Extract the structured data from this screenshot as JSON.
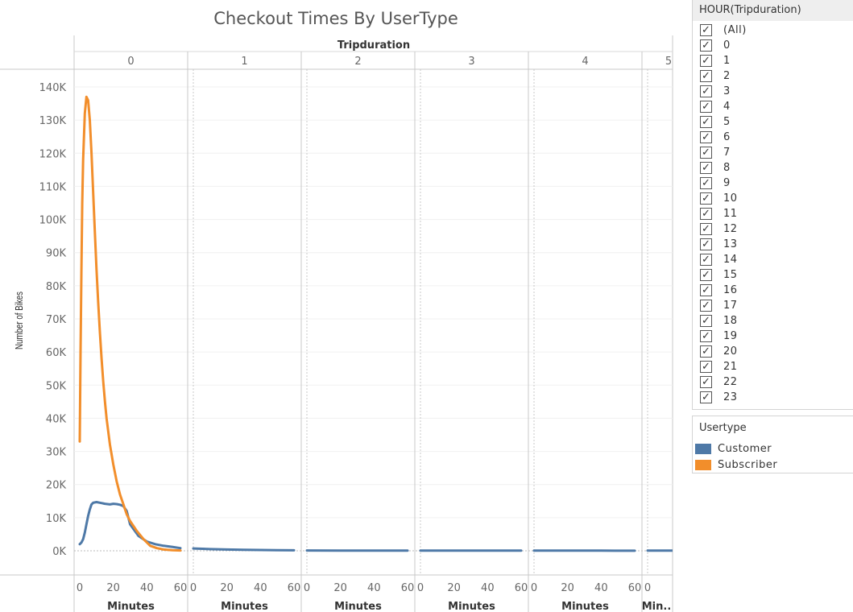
{
  "chart_data": {
    "type": "line",
    "title": "Checkout Times By UserType",
    "column_header": "Tripduration",
    "panes": [
      "0",
      "1",
      "2",
      "3",
      "4",
      "5"
    ],
    "ylabel": "Number of Bikes",
    "xlabel": "Minutes",
    "xlabel_truncated": "Min..",
    "ylim": [
      0,
      145000
    ],
    "yticks": [
      0,
      10000,
      20000,
      30000,
      40000,
      50000,
      60000,
      70000,
      80000,
      90000,
      100000,
      110000,
      120000,
      130000,
      140000
    ],
    "ytick_labels": [
      "0K",
      "10K",
      "20K",
      "30K",
      "40K",
      "50K",
      "60K",
      "70K",
      "80K",
      "90K",
      "100K",
      "110K",
      "120K",
      "130K",
      "140K"
    ],
    "xlim": [
      0,
      60
    ],
    "xticks": [
      0,
      20,
      40,
      60
    ],
    "xtick_labels": [
      "0",
      "20",
      "40",
      "60"
    ],
    "series": [
      {
        "name": "Customer",
        "color": "#4e79a7",
        "data": [
          {
            "pane": "0",
            "x": [
              0,
              1,
              2,
              3,
              4,
              5,
              6,
              7,
              8,
              10,
              12,
              15,
              18,
              20,
              22,
              24,
              26,
              28,
              30,
              35,
              40,
              45,
              50,
              55,
              60
            ],
            "y": [
              2000,
              2500,
              3500,
              5500,
              8000,
              10500,
              12500,
              14000,
              14500,
              14700,
              14500,
              14200,
              14000,
              14200,
              14100,
              13900,
              13500,
              12000,
              8000,
              4500,
              2800,
              2000,
              1500,
              1200,
              800
            ]
          },
          {
            "pane": "1",
            "x": [
              0,
              10,
              20,
              30,
              40,
              50,
              60
            ],
            "y": [
              700,
              500,
              400,
              300,
              250,
              200,
              150
            ]
          },
          {
            "pane": "2",
            "x": [
              0,
              20,
              40,
              60
            ],
            "y": [
              100,
              80,
              60,
              50
            ]
          },
          {
            "pane": "3",
            "x": [
              0,
              20,
              40,
              60
            ],
            "y": [
              80,
              60,
              50,
              40
            ]
          },
          {
            "pane": "4",
            "x": [
              0,
              20,
              40,
              60
            ],
            "y": [
              60,
              50,
              40,
              30
            ]
          },
          {
            "pane": "5",
            "x": [
              0,
              20
            ],
            "y": [
              50,
              40
            ]
          }
        ]
      },
      {
        "name": "Subscriber",
        "color": "#f28e2b",
        "data": [
          {
            "pane": "0",
            "x": [
              0,
              0.5,
              1,
              1.5,
              2,
              3,
              4,
              5,
              6,
              7,
              8,
              9,
              10,
              11,
              12,
              13,
              14,
              15,
              16,
              17,
              18,
              20,
              22,
              24,
              26,
              28,
              30,
              34,
              38,
              42,
              46,
              50,
              55,
              60
            ],
            "y": [
              33000,
              60000,
              85000,
              105000,
              118000,
              132000,
              137000,
              136000,
              130000,
              120000,
              108000,
              96000,
              85000,
              75000,
              66000,
              58000,
              51000,
              45000,
              40000,
              36000,
              32000,
              26000,
              21000,
              17000,
              14000,
              11000,
              9000,
              6000,
              3500,
              1500,
              800,
              400,
              200,
              100
            ]
          }
        ]
      }
    ]
  },
  "filter": {
    "title": "HOUR(Tripduration)",
    "items": [
      "(All)",
      "0",
      "1",
      "2",
      "3",
      "4",
      "5",
      "6",
      "7",
      "8",
      "9",
      "10",
      "11",
      "12",
      "13",
      "14",
      "15",
      "16",
      "17",
      "18",
      "19",
      "20",
      "21",
      "22",
      "23"
    ],
    "check_glyph": "✓"
  },
  "legend": {
    "title": "Usertype",
    "items": [
      {
        "label": "Customer",
        "color": "#4e79a7"
      },
      {
        "label": "Subscriber",
        "color": "#f28e2b"
      }
    ]
  }
}
